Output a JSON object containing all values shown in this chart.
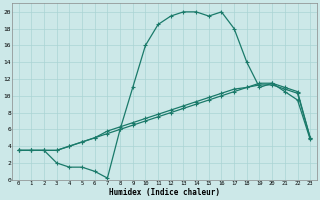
{
  "xlabel": "Humidex (Indice chaleur)",
  "xlim": [
    -0.5,
    23.5
  ],
  "ylim": [
    0,
    21
  ],
  "xticks": [
    0,
    1,
    2,
    3,
    4,
    5,
    6,
    7,
    8,
    9,
    10,
    11,
    12,
    13,
    14,
    15,
    16,
    17,
    18,
    19,
    20,
    21,
    22,
    23
  ],
  "yticks": [
    0,
    2,
    4,
    6,
    8,
    10,
    12,
    14,
    16,
    18,
    20
  ],
  "bg_color": "#cce8e8",
  "grid_color": "#aad4d4",
  "line_color": "#1a7a6a",
  "line1_x": [
    0,
    1,
    2,
    3,
    4,
    5,
    6,
    7,
    8,
    9,
    10,
    11,
    12,
    13,
    14,
    15,
    16,
    17,
    18,
    19,
    20,
    21,
    22,
    23
  ],
  "line1_y": [
    3.5,
    3.5,
    3.5,
    2.0,
    1.5,
    1.5,
    1.0,
    0.2,
    6.0,
    11.0,
    16.0,
    18.5,
    19.5,
    20.0,
    20.0,
    19.5,
    20.0,
    18.0,
    14.0,
    11.0,
    11.5,
    10.5,
    9.5,
    4.8
  ],
  "line2_x": [
    0,
    1,
    2,
    3,
    4,
    5,
    6,
    7,
    8,
    9,
    10,
    11,
    12,
    13,
    14,
    15,
    16,
    17,
    18,
    19,
    20,
    21,
    22,
    23
  ],
  "line2_y": [
    3.5,
    3.5,
    3.5,
    3.5,
    4.0,
    4.5,
    5.0,
    5.5,
    6.0,
    6.5,
    7.0,
    7.5,
    8.0,
    8.5,
    9.0,
    9.5,
    10.0,
    10.5,
    11.0,
    11.5,
    11.5,
    11.0,
    10.5,
    5.0
  ],
  "line3_x": [
    0,
    1,
    2,
    3,
    4,
    5,
    6,
    7,
    8,
    9,
    10,
    11,
    12,
    13,
    14,
    15,
    16,
    17,
    18,
    19,
    20,
    21,
    22,
    23
  ],
  "line3_y": [
    3.5,
    3.5,
    3.5,
    3.5,
    4.0,
    4.5,
    5.0,
    5.8,
    6.3,
    6.8,
    7.3,
    7.8,
    8.3,
    8.8,
    9.3,
    9.8,
    10.3,
    10.8,
    11.0,
    11.3,
    11.3,
    10.8,
    10.3,
    5.0
  ]
}
